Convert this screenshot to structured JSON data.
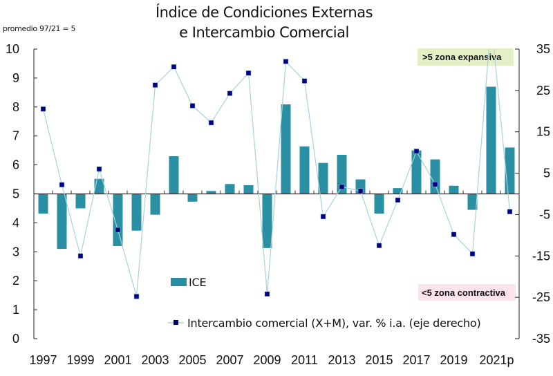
{
  "chart_data": {
    "type": "bar+line",
    "title_line1": "Índice de Condiciones Externas",
    "title_line2": "e Intercambio Comercial",
    "note": "promedio 97/21 = 5",
    "categories": [
      "1997",
      "1998",
      "1999",
      "2000",
      "2001",
      "2002",
      "2003",
      "2004",
      "2005",
      "2006",
      "2007",
      "2008",
      "2009",
      "2010",
      "2011",
      "2012",
      "2013",
      "2014",
      "2015",
      "2016",
      "2017",
      "2018",
      "2019",
      "2020",
      "2021",
      "2022"
    ],
    "x_tick_labels": [
      {
        "index": 0,
        "label": "1997"
      },
      {
        "index": 2,
        "label": "1999"
      },
      {
        "index": 4,
        "label": "2001"
      },
      {
        "index": 6,
        "label": "2003"
      },
      {
        "index": 8,
        "label": "2005"
      },
      {
        "index": 10,
        "label": "2007"
      },
      {
        "index": 12,
        "label": "2009"
      },
      {
        "index": 14,
        "label": "2011"
      },
      {
        "index": 16,
        "label": "2013"
      },
      {
        "index": 18,
        "label": "2015"
      },
      {
        "index": 20,
        "label": "2017"
      },
      {
        "index": 22,
        "label": "2019"
      },
      {
        "index": 24,
        "label": "2021p"
      }
    ],
    "left_axis": {
      "min": 0,
      "max": 10,
      "ticks": [
        0,
        1,
        2,
        3,
        4,
        5,
        6,
        7,
        8,
        9,
        10
      ],
      "baseline": 5
    },
    "right_axis": {
      "min": -35,
      "max": 35,
      "ticks": [
        35,
        25,
        15,
        5,
        -5,
        -15,
        -25,
        -35
      ]
    },
    "series": [
      {
        "name": "ICE",
        "type": "bar",
        "axis": "left",
        "color": "#2b8fa4",
        "values": [
          4.32,
          3.1,
          4.5,
          5.52,
          3.2,
          3.73,
          4.28,
          6.3,
          4.73,
          5.1,
          5.34,
          5.3,
          3.13,
          8.09,
          6.64,
          6.07,
          6.35,
          5.5,
          4.32,
          5.2,
          6.5,
          6.19,
          5.28,
          4.45,
          8.7,
          6.6
        ]
      },
      {
        "name": "Intercambio comercial (X+M), var. % i.a. (eje derecho)",
        "type": "line",
        "axis": "right",
        "marker_color": "#000080",
        "line_color": "#a8d2d8",
        "values": [
          20.5,
          2.2,
          -15.0,
          6.0,
          -8.7,
          -24.8,
          26.3,
          30.7,
          21.3,
          17.2,
          24.3,
          29.2,
          -24.2,
          32.0,
          27.3,
          -5.5,
          1.7,
          0.7,
          -12.5,
          -1.5,
          10.3,
          2.3,
          -9.8,
          -14.5,
          42.0,
          -4.3
        ]
      }
    ],
    "annotations": [
      {
        "text": ">5 zona expansiva",
        "position": "top-right",
        "bg": "#e3efc4"
      },
      {
        "text": "<5 zona contractiva",
        "position": "bottom-right",
        "bg": "#fbe3ea"
      }
    ],
    "legend": [
      {
        "label": "ICE",
        "type": "bar"
      },
      {
        "label": "Intercambio comercial (X+M), var. % i.a. (eje derecho)",
        "type": "line-marker"
      }
    ],
    "legend_position": "bottom-center",
    "grid": false
  }
}
